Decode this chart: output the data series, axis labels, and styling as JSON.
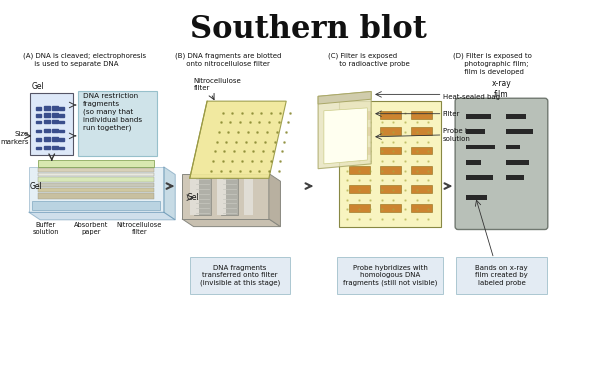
{
  "title": "Southern blot",
  "title_fontsize": 22,
  "title_fontweight": "bold",
  "bg_color": "#ffffff",
  "section_labels": [
    "(A) DNA is cleaved; electrophoresis\n     is used to separate DNA",
    "(B) DNA fragments are blotted\n     onto nitrocellulose filter",
    "(C) Filter is exposed\n     to radioactive probe",
    "(D) Filter is exposed to\n     photographic film;\n     film is developed"
  ],
  "bottom_labels_B": "DNA fragments\ntransferred onto filter\n(invisible at this stage)",
  "bottom_labels_C": "Probe hybridizes with\nhomologous DNA\nfragments (still not visible)",
  "bottom_labels_D": "Bands on x-ray\nfilm created by\nlabeled probe",
  "callout_label": "DNA restriction\nfragments\n(so many that\nindividual bands\nrun together)",
  "panel_B_labels": [
    "Nitrocellulose\nfilter",
    "Gel"
  ],
  "panel_C_labels": [
    "Heat-sealed bag",
    "Filter",
    "Probe in\nsolution"
  ],
  "panel_D_label": "x-ray\nfilm",
  "colors": {
    "gel_blue_dark": "#3a4e8c",
    "gel_blue_light": "#c8d8f0",
    "gel_bg": "#dde8f8",
    "callout_box": "#a8ccd8",
    "tray_blue": "#a0c0d8",
    "tray_fill": "#c0d8e8",
    "stack_green": "#d8e8b0",
    "stack_tan": "#d0c8a8",
    "stack_gray": "#d8d8d8",
    "stack_white": "#f0f0f0",
    "yellow_filter": "#f0e898",
    "yellow_filter_bg": "#f8f4c0",
    "gray_gel_B": "#b8b8b0",
    "bag_outer": "#e8e4c0",
    "bag_inner": "#f8f6e0",
    "filter_inner": "#fffff0",
    "orange_band": "#c87820",
    "xray_bg": "#b8c0b8",
    "dark_band": "#282828",
    "arrow_color": "#404040",
    "bottom_box": "#c8d8e8"
  }
}
